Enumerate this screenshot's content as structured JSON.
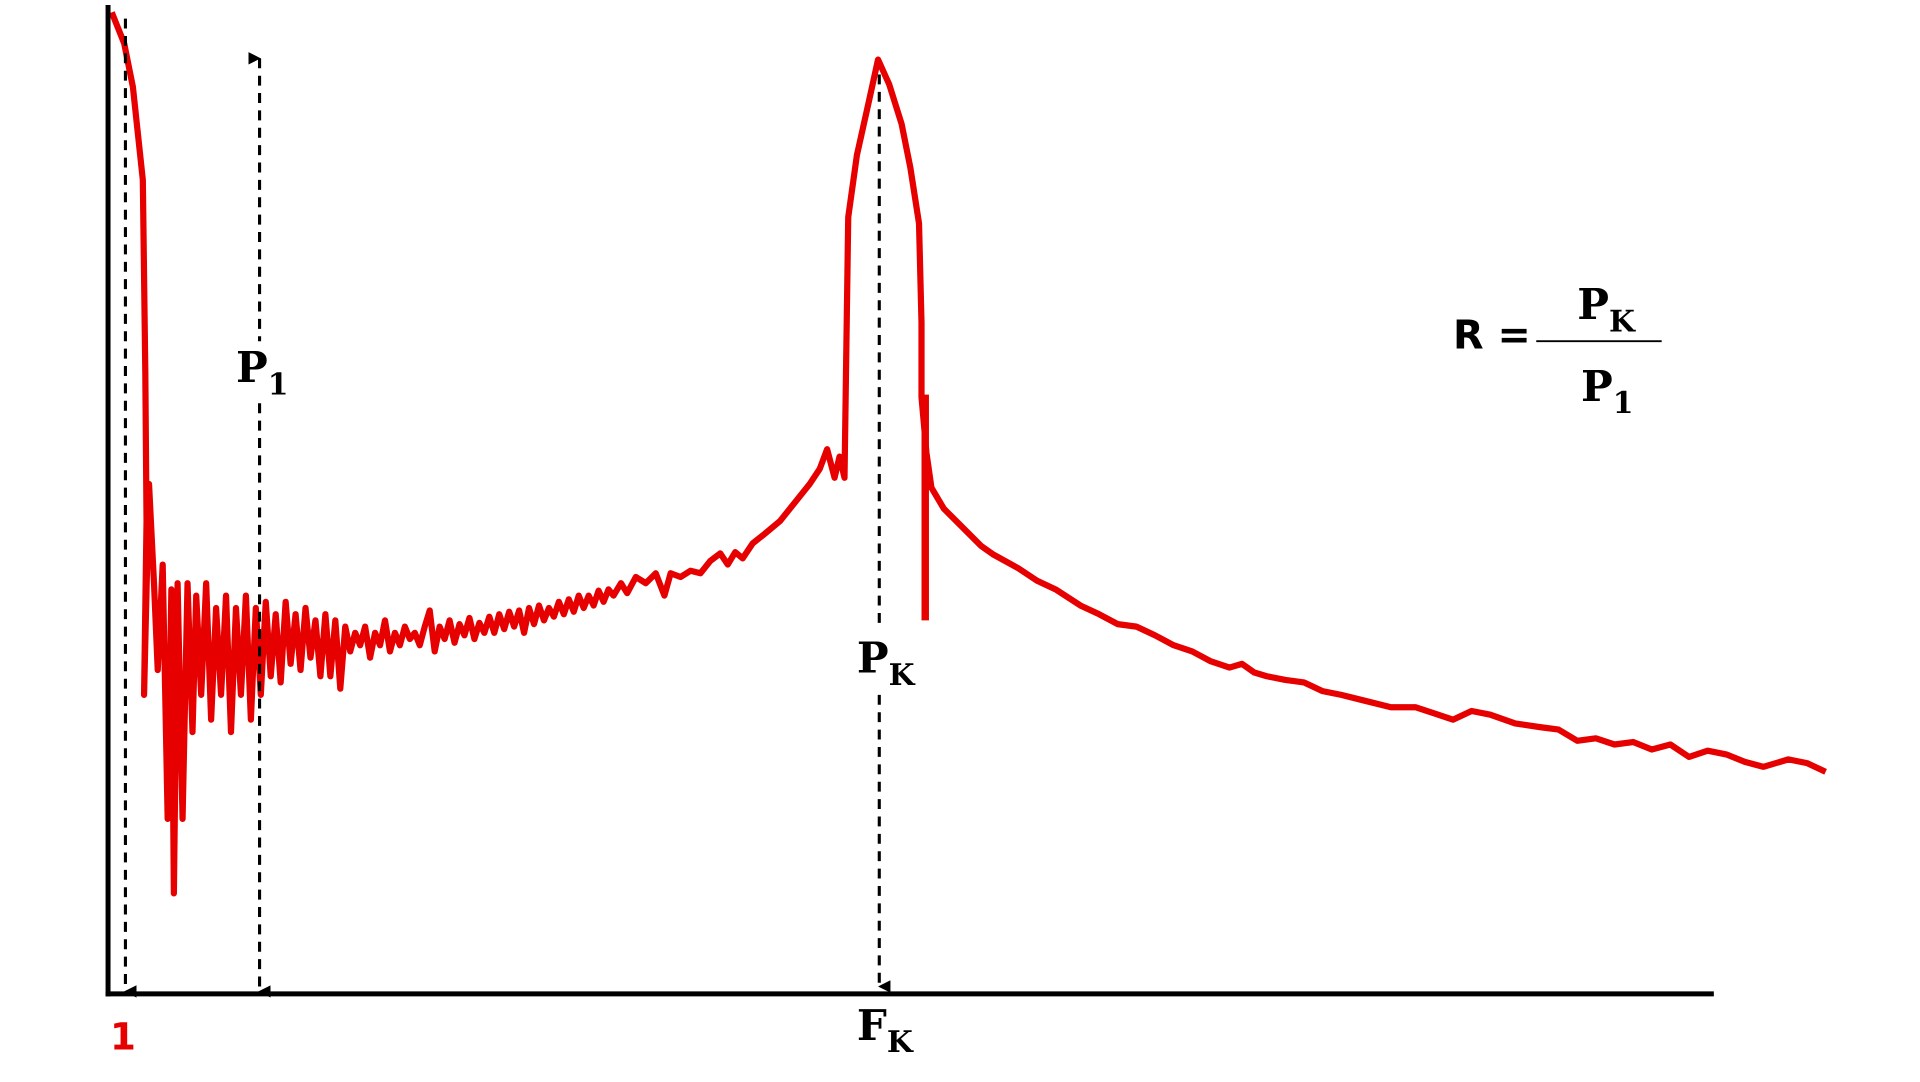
{
  "x_axis": {
    "origin_label": "1",
    "peak_label": {
      "letter": "F",
      "subscript": "K"
    }
  },
  "markers": {
    "p1": {
      "letter": "P",
      "subscript": "1"
    },
    "pk": {
      "letter": "P",
      "subscript": "K"
    }
  },
  "formula": {
    "lhs": "R =",
    "numerator": {
      "letter": "P",
      "subscript": "K"
    },
    "denominator": {
      "letter": "P",
      "subscript": "1"
    }
  }
}
